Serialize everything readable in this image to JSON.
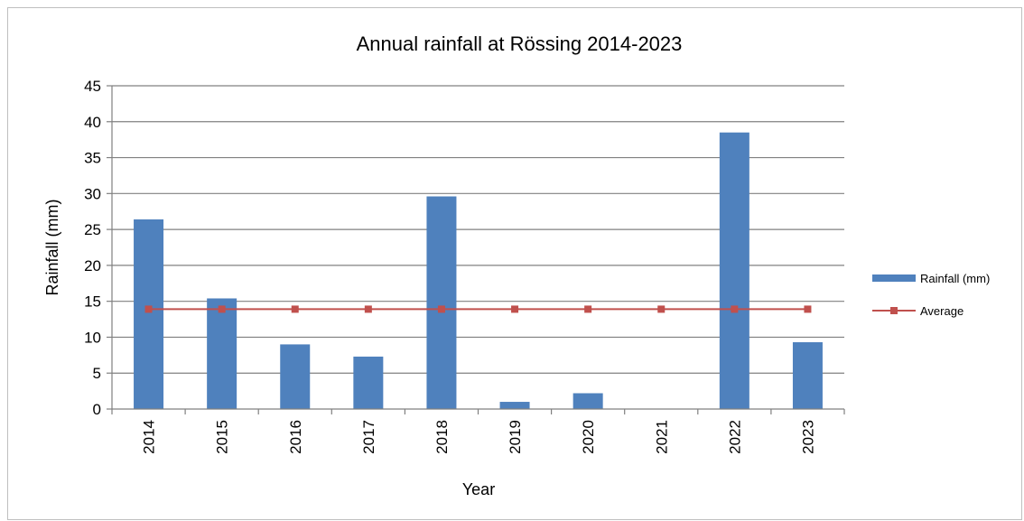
{
  "chart_data": {
    "type": "bar",
    "title": "Annual rainfall at Rössing 2014-2023",
    "xlabel": "Year",
    "ylabel": "Rainfall (mm)",
    "categories": [
      "2014",
      "2015",
      "2016",
      "2017",
      "2018",
      "2019",
      "2020",
      "2021",
      "2022",
      "2023"
    ],
    "series": [
      {
        "name": "Rainfall (mm)",
        "type": "bar",
        "color": "#4f81bd",
        "values": [
          26.4,
          15.4,
          9.0,
          7.3,
          29.6,
          1.0,
          2.2,
          0.0,
          38.5,
          9.3
        ]
      },
      {
        "name": "Average",
        "type": "line",
        "color": "#c0504d",
        "values": [
          13.9,
          13.9,
          13.9,
          13.9,
          13.9,
          13.9,
          13.9,
          13.9,
          13.9,
          13.9
        ]
      }
    ],
    "ylim": [
      0,
      45
    ],
    "yticks": [
      0,
      5,
      10,
      15,
      20,
      25,
      30,
      35,
      40,
      45
    ],
    "grid": true,
    "legend_position": "right"
  }
}
